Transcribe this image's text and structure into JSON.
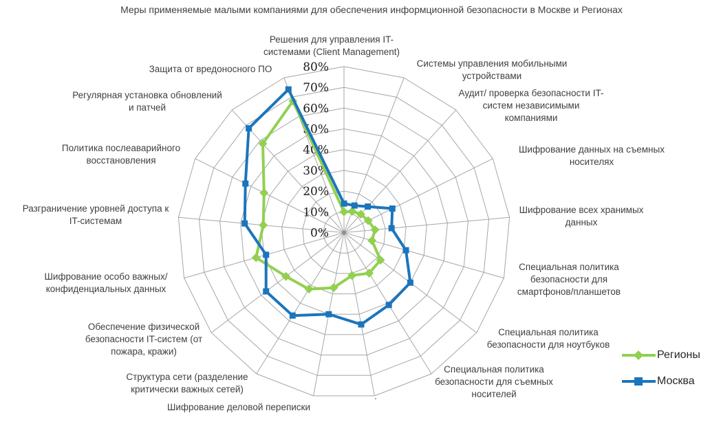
{
  "title": "Меры применяемые малыми компаниями для обеспечения информционной безопасности в Москве и Регионах",
  "chart_data": {
    "type": "radar",
    "categories": [
      "Решения для управления IT-системами (Client Management)",
      "Системы управления мобильными устройствами",
      "Аудит/ проверка безопасности IT-систем независимыми компаниями",
      "Шифрование данных на съемных носителях",
      "Шифрование всех хранимых данных",
      "Специальная политика безопасности для смартфонов/планшетов",
      "Специальная политика безопасности для ноутбуков",
      "Специальная политика безопасности для съемных носителей",
      ".",
      "Шифрование деловой переписки",
      "Структура сети (разделение критически важных сетей)",
      "Обеспечение физической безопасности IT-систем (от пожара, кражи)",
      "Шифрование особо важных/ конфиденциальных данных",
      "Разграничение уровней доступа к IT-системам",
      "Политика послеаварийного восстановления",
      "Регулярная установка обновлений и патчей",
      "Защита от вредоносного ПО"
    ],
    "label_lines": [
      [
        "Решения для управления IT-",
        "системами (Client Management)"
      ],
      [
        "Системы управления мобильными",
        "устройствами"
      ],
      [
        "Аудит/ проверка безопасности IT-",
        "систем независимыми",
        "компаниями"
      ],
      [
        "Шифрование данных на съемных",
        "носителях"
      ],
      [
        "Шифрование всех хранимых",
        "данных"
      ],
      [
        "Специальная политика",
        "безопасности для",
        "смартфонов/планшетов"
      ],
      [
        "Специальная политика",
        "безопасности для ноутбуков"
      ],
      [
        "Специальная политика",
        "безопасности для съемных",
        "носителей"
      ],
      [
        "."
      ],
      [
        "Шифрование деловой переписки"
      ],
      [
        "Структура сети (разделение",
        "критически важных сетей)"
      ],
      [
        "Обеспечение физической",
        "безопасности IT-систем (от",
        "пожара, кражи)"
      ],
      [
        "Шифрование особо важных/",
        "конфиденциальных данных"
      ],
      [
        "Разграничение уровней доступа к",
        "IT-системам"
      ],
      [
        "Политика послеаварийного",
        "восстановления"
      ],
      [
        "Регулярная установка обновлений",
        "и патчей"
      ],
      [
        "Защита от вредоносного ПО"
      ]
    ],
    "series": [
      {
        "name": "Регионы",
        "color": "#92D050",
        "marker": "diamond",
        "values": [
          10,
          11,
          12,
          13,
          15,
          14,
          22,
          23,
          21,
          27,
          32,
          35,
          44,
          39,
          43,
          58,
          68
        ]
      },
      {
        "name": "Москва",
        "color": "#1B75BC",
        "marker": "square",
        "values": [
          14,
          14,
          17,
          26,
          23,
          31,
          40,
          41,
          45,
          40,
          47,
          47,
          39,
          48,
          53,
          68,
          74
        ]
      }
    ],
    "axis": {
      "min": 0,
      "max": 80,
      "step": 10,
      "tick_labels": [
        "0%",
        "10%",
        "20%",
        "30%",
        "40%",
        "50%",
        "60%",
        "70%",
        "80%"
      ]
    },
    "grid": true,
    "grid_color": "#a6a6a6",
    "legend_position": "right-bottom"
  }
}
